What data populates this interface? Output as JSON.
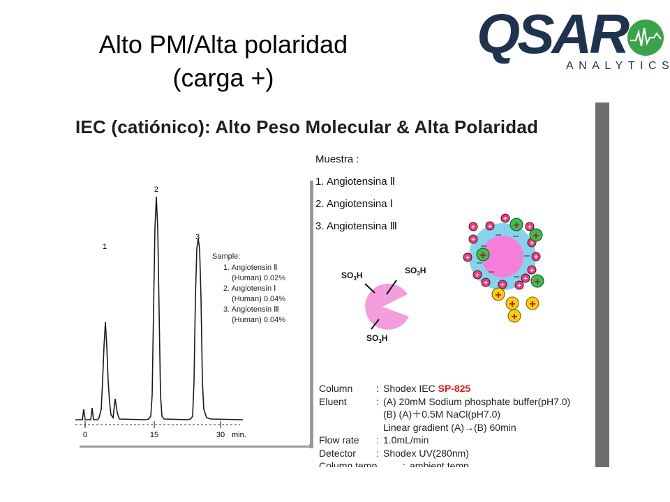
{
  "title": {
    "line1": "Alto PM/Alta polaridad",
    "line2": "(carga +)"
  },
  "logo": {
    "word": "QSAR",
    "sub": "ANALYTICS"
  },
  "slide": {
    "heading": "IEC (catiónico): Alto Peso Molecular & Alta Polaridad",
    "sample_box": {
      "title": "Sample:",
      "lines": [
        "1. Angiotensin Ⅱ",
        "(Human)  0.02%",
        "2. Angiotensin Ⅰ",
        "(Human)  0.04%",
        "3. Angiotensin Ⅲ",
        "(Human)  0.04%"
      ]
    },
    "peaks": [
      "1",
      "2",
      "3"
    ],
    "axis_ticks": [
      "0",
      "15",
      "30"
    ],
    "axis_unit": "min.",
    "muestra": {
      "title": "Muestra :",
      "items": [
        "1. Angiotensina Ⅱ",
        "2. Angiotensina Ⅰ",
        "3. Angiotensina Ⅲ"
      ]
    },
    "resin": {
      "groups": [
        "SO3H",
        "SO3H",
        "SO3H"
      ]
    },
    "conditions": {
      "column_label": "Column",
      "column_prefix": "Shodex IEC ",
      "column_model": "SP-825",
      "eluent_label": "Eluent",
      "eluent_a": "(A) 20mM Sodium phosphate buffer(pH7.0)",
      "eluent_b": "(B) (A)＋0.5M NaCl(pH7.0)",
      "gradient": "Linear gradient (A)→(B) 60min",
      "flow_label": "Flow rate",
      "flow": "1.0mL/min",
      "detector_label": "Detector",
      "detector": "Shodex UV(280nm)",
      "temp_label": "Column temp.",
      "temp": "ambient temp."
    }
  }
}
